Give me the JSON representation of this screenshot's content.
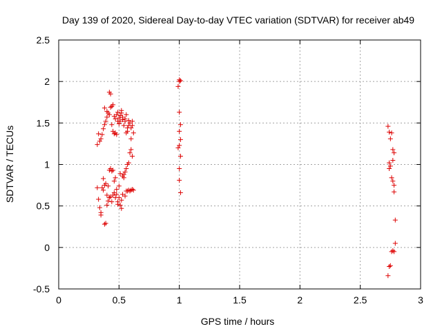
{
  "chart_data": {
    "type": "scatter",
    "title": "Day 139 of 2020, Sidereal Day-to-day VTEC variation (SDTVAR) for receiver ab49",
    "xlabel": "GPS time / hours",
    "ylabel": "SDTVAR / TECUs",
    "xlim": [
      0,
      3
    ],
    "ylim": [
      -0.5,
      2.5
    ],
    "xticks": [
      "0",
      "0.5",
      "1",
      "1.5",
      "2",
      "2.5",
      "3"
    ],
    "yticks": [
      "-0.5",
      "0",
      "0.5",
      "1",
      "1.5",
      "2",
      "2.5"
    ],
    "grid": true,
    "marker": "+",
    "color": "#dd0000",
    "series": [
      {
        "name": "SDTVAR",
        "points": [
          [
            0.32,
            1.24
          ],
          [
            0.33,
            1.37
          ],
          [
            0.34,
            1.28
          ],
          [
            0.35,
            1.31
          ],
          [
            0.36,
            1.36
          ],
          [
            0.37,
            1.43
          ],
          [
            0.38,
            1.48
          ],
          [
            0.38,
            1.68
          ],
          [
            0.39,
            1.52
          ],
          [
            0.4,
            1.57
          ],
          [
            0.4,
            1.64
          ],
          [
            0.41,
            1.62
          ],
          [
            0.42,
            1.6
          ],
          [
            0.42,
            1.87
          ],
          [
            0.43,
            1.85
          ],
          [
            0.43,
            1.69
          ],
          [
            0.44,
            1.7
          ],
          [
            0.44,
            1.48
          ],
          [
            0.45,
            1.72
          ],
          [
            0.45,
            1.4
          ],
          [
            0.46,
            1.37
          ],
          [
            0.46,
            1.58
          ],
          [
            0.47,
            1.55
          ],
          [
            0.47,
            1.38
          ],
          [
            0.48,
            1.36
          ],
          [
            0.48,
            1.6
          ],
          [
            0.49,
            1.52
          ],
          [
            0.49,
            1.63
          ],
          [
            0.5,
            1.56
          ],
          [
            0.5,
            1.49
          ],
          [
            0.51,
            1.59
          ],
          [
            0.51,
            1.52
          ],
          [
            0.52,
            1.62
          ],
          [
            0.52,
            1.65
          ],
          [
            0.53,
            1.57
          ],
          [
            0.53,
            1.54
          ],
          [
            0.54,
            1.47
          ],
          [
            0.55,
            1.55
          ],
          [
            0.55,
            1.52
          ],
          [
            0.56,
            1.6
          ],
          [
            0.56,
            1.38
          ],
          [
            0.57,
            1.44
          ],
          [
            0.57,
            1.4
          ],
          [
            0.58,
            1.47
          ],
          [
            0.58,
            1.53
          ],
          [
            0.59,
            1.5
          ],
          [
            0.6,
            1.44
          ],
          [
            0.6,
            1.31
          ],
          [
            0.61,
            1.47
          ],
          [
            0.61,
            1.52
          ],
          [
            0.62,
            1.38
          ],
          [
            0.32,
            0.72
          ],
          [
            0.33,
            0.58
          ],
          [
            0.34,
            0.48
          ],
          [
            0.35,
            0.42
          ],
          [
            0.35,
            0.39
          ],
          [
            0.36,
            0.72
          ],
          [
            0.37,
            0.69
          ],
          [
            0.37,
            0.83
          ],
          [
            0.38,
            0.75
          ],
          [
            0.38,
            0.28
          ],
          [
            0.39,
            0.29
          ],
          [
            0.39,
            0.77
          ],
          [
            0.4,
            0.63
          ],
          [
            0.4,
            0.51
          ],
          [
            0.41,
            0.74
          ],
          [
            0.41,
            0.56
          ],
          [
            0.42,
            0.93
          ],
          [
            0.42,
            0.6
          ],
          [
            0.43,
            0.95
          ],
          [
            0.43,
            0.61
          ],
          [
            0.44,
            0.92
          ],
          [
            0.44,
            0.55
          ],
          [
            0.45,
            0.93
          ],
          [
            0.45,
            0.63
          ],
          [
            0.46,
            0.66
          ],
          [
            0.46,
            0.8
          ],
          [
            0.47,
            0.6
          ],
          [
            0.47,
            0.84
          ],
          [
            0.48,
            0.7
          ],
          [
            0.48,
            0.64
          ],
          [
            0.49,
            0.55
          ],
          [
            0.49,
            0.52
          ],
          [
            0.5,
            0.6
          ],
          [
            0.5,
            0.74
          ],
          [
            0.51,
            0.89
          ],
          [
            0.51,
            0.51
          ],
          [
            0.52,
            0.47
          ],
          [
            0.52,
            0.57
          ],
          [
            0.53,
            0.86
          ],
          [
            0.53,
            0.64
          ],
          [
            0.54,
            0.84
          ],
          [
            0.54,
            0.88
          ],
          [
            0.55,
            0.91
          ],
          [
            0.55,
            0.62
          ],
          [
            0.56,
            0.95
          ],
          [
            0.56,
            0.68
          ],
          [
            0.57,
            0.68
          ],
          [
            0.57,
            1.0
          ],
          [
            0.58,
            1.02
          ],
          [
            0.58,
            0.69
          ],
          [
            0.59,
            1.14
          ],
          [
            0.59,
            0.68
          ],
          [
            0.6,
            1.18
          ],
          [
            0.6,
            0.69
          ],
          [
            0.61,
            1.1
          ],
          [
            0.61,
            0.7
          ],
          [
            0.62,
            0.69
          ],
          [
            0.99,
            1.94
          ],
          [
            1.0,
            2.0
          ],
          [
            1.0,
            2.02
          ],
          [
            1.01,
            2.01
          ],
          [
            1.0,
            1.63
          ],
          [
            1.01,
            1.48
          ],
          [
            1.0,
            1.4
          ],
          [
            1.01,
            1.3
          ],
          [
            1.0,
            1.23
          ],
          [
            0.99,
            1.2
          ],
          [
            1.01,
            1.1
          ],
          [
            1.0,
            0.95
          ],
          [
            1.0,
            0.81
          ],
          [
            1.01,
            0.66
          ],
          [
            2.73,
            1.46
          ],
          [
            2.74,
            1.39
          ],
          [
            2.76,
            1.38
          ],
          [
            2.75,
            1.31
          ],
          [
            2.77,
            1.18
          ],
          [
            2.78,
            1.14
          ],
          [
            2.77,
            1.05
          ],
          [
            2.74,
            1.02
          ],
          [
            2.75,
            0.98
          ],
          [
            2.74,
            0.95
          ],
          [
            2.76,
            0.84
          ],
          [
            2.77,
            0.8
          ],
          [
            2.78,
            0.75
          ],
          [
            2.78,
            0.67
          ],
          [
            2.79,
            0.33
          ],
          [
            2.79,
            0.05
          ],
          [
            2.77,
            -0.04
          ],
          [
            2.78,
            -0.05
          ],
          [
            2.76,
            -0.05
          ],
          [
            2.75,
            -0.22
          ],
          [
            2.74,
            -0.23
          ],
          [
            2.73,
            -0.34
          ]
        ]
      }
    ]
  }
}
